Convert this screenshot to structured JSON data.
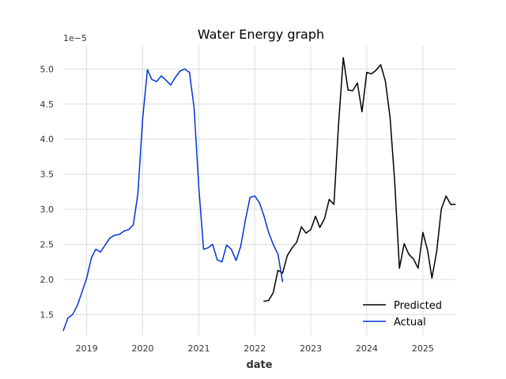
{
  "chart_data": {
    "type": "line",
    "title": "Water Energy graph",
    "xlabel": "date",
    "ylabel": "",
    "y_offset_label": "1e−5",
    "y_scale_note": "values shown in units of 1e-5",
    "xlim": [
      "2018-08-01",
      "2025-08-01"
    ],
    "ylim": [
      1.2,
      5.33
    ],
    "x_ticks": [
      "2019",
      "2020",
      "2021",
      "2022",
      "2023",
      "2024",
      "2025"
    ],
    "y_ticks": [
      "1.5",
      "2.0",
      "2.5",
      "3.0",
      "3.5",
      "4.0",
      "4.5",
      "5.0"
    ],
    "grid": true,
    "legend_position": "lower-right",
    "series": [
      {
        "name": "Predicted",
        "color": "#000000",
        "points": [
          [
            "2022-03-01",
            1.69
          ],
          [
            "2022-04-01",
            1.7
          ],
          [
            "2022-05-01",
            1.81
          ],
          [
            "2022-06-01",
            2.13
          ],
          [
            "2022-07-01",
            2.09
          ],
          [
            "2022-08-01",
            2.34
          ],
          [
            "2022-09-01",
            2.45
          ],
          [
            "2022-10-01",
            2.53
          ],
          [
            "2022-11-01",
            2.75
          ],
          [
            "2022-12-01",
            2.66
          ],
          [
            "2023-01-01",
            2.71
          ],
          [
            "2023-02-01",
            2.9
          ],
          [
            "2023-03-01",
            2.74
          ],
          [
            "2023-04-01",
            2.87
          ],
          [
            "2023-05-01",
            3.14
          ],
          [
            "2023-06-01",
            3.07
          ],
          [
            "2023-07-01",
            4.21
          ],
          [
            "2023-08-01",
            5.16
          ],
          [
            "2023-09-01",
            4.7
          ],
          [
            "2023-10-01",
            4.69
          ],
          [
            "2023-11-01",
            4.8
          ],
          [
            "2023-12-01",
            4.39
          ],
          [
            "2024-01-01",
            4.95
          ],
          [
            "2024-02-01",
            4.93
          ],
          [
            "2024-03-01",
            4.98
          ],
          [
            "2024-04-01",
            5.06
          ],
          [
            "2024-05-01",
            4.83
          ],
          [
            "2024-06-01",
            4.31
          ],
          [
            "2024-07-01",
            3.4
          ],
          [
            "2024-08-01",
            2.16
          ],
          [
            "2024-09-01",
            2.51
          ],
          [
            "2024-10-01",
            2.36
          ],
          [
            "2024-11-01",
            2.29
          ],
          [
            "2024-12-01",
            2.16
          ],
          [
            "2025-01-01",
            2.67
          ],
          [
            "2025-02-01",
            2.41
          ],
          [
            "2025-03-01",
            2.02
          ],
          [
            "2025-04-01",
            2.4
          ],
          [
            "2025-05-01",
            3.0
          ],
          [
            "2025-06-01",
            3.19
          ],
          [
            "2025-07-01",
            3.07
          ],
          [
            "2025-08-01",
            3.07
          ]
        ]
      },
      {
        "name": "Actual",
        "color": "#0033dd",
        "points": [
          [
            "2018-08-01",
            1.27
          ],
          [
            "2018-09-01",
            1.45
          ],
          [
            "2018-10-01",
            1.5
          ],
          [
            "2018-11-01",
            1.63
          ],
          [
            "2018-12-01",
            1.82
          ],
          [
            "2019-01-01",
            2.02
          ],
          [
            "2019-02-01",
            2.31
          ],
          [
            "2019-03-01",
            2.43
          ],
          [
            "2019-04-01",
            2.39
          ],
          [
            "2019-05-01",
            2.49
          ],
          [
            "2019-06-01",
            2.59
          ],
          [
            "2019-07-01",
            2.63
          ],
          [
            "2019-08-01",
            2.64
          ],
          [
            "2019-09-01",
            2.69
          ],
          [
            "2019-10-01",
            2.71
          ],
          [
            "2019-11-01",
            2.78
          ],
          [
            "2019-12-01",
            3.23
          ],
          [
            "2020-01-01",
            4.3
          ],
          [
            "2020-02-01",
            4.99
          ],
          [
            "2020-03-01",
            4.85
          ],
          [
            "2020-04-01",
            4.82
          ],
          [
            "2020-05-01",
            4.9
          ],
          [
            "2020-06-01",
            4.84
          ],
          [
            "2020-07-01",
            4.77
          ],
          [
            "2020-08-01",
            4.88
          ],
          [
            "2020-09-01",
            4.97
          ],
          [
            "2020-10-01",
            5.0
          ],
          [
            "2020-11-01",
            4.95
          ],
          [
            "2020-12-01",
            4.45
          ],
          [
            "2021-01-01",
            3.31
          ],
          [
            "2021-02-01",
            2.43
          ],
          [
            "2021-03-01",
            2.45
          ],
          [
            "2021-04-01",
            2.5
          ],
          [
            "2021-05-01",
            2.28
          ],
          [
            "2021-06-01",
            2.25
          ],
          [
            "2021-07-01",
            2.49
          ],
          [
            "2021-08-01",
            2.43
          ],
          [
            "2021-09-01",
            2.27
          ],
          [
            "2021-10-01",
            2.47
          ],
          [
            "2021-11-01",
            2.85
          ],
          [
            "2021-12-01",
            3.17
          ],
          [
            "2022-01-01",
            3.19
          ],
          [
            "2022-02-01",
            3.09
          ],
          [
            "2022-03-01",
            2.91
          ],
          [
            "2022-04-01",
            2.67
          ],
          [
            "2022-05-01",
            2.5
          ],
          [
            "2022-06-01",
            2.36
          ],
          [
            "2022-07-01",
            1.97
          ]
        ]
      }
    ]
  },
  "legend": {
    "items": [
      {
        "label": "Predicted",
        "color": "#000000"
      },
      {
        "label": "Actual",
        "color": "#0033dd"
      }
    ]
  }
}
